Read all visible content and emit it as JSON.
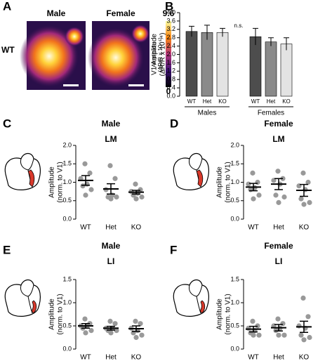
{
  "panel_a": {
    "panel": "A",
    "columns": [
      "Male",
      "Female"
    ],
    "row": "WT",
    "colorbar_max": "9.6",
    "colorbar_min": "0",
    "colorbar_label": [
      "Amplitude",
      "(ΔR/R x 10⁻⁴)"
    ]
  },
  "chart_data": [
    {
      "type": "bar",
      "panel": "B",
      "ylabel": [
        "V1 Amplitude",
        "(ΔR/R x 10⁻⁴)"
      ],
      "categories": [
        "WT",
        "Het",
        "KO",
        "WT",
        "Het",
        "KO"
      ],
      "groups": [
        "Males",
        "Females"
      ],
      "values": [
        3.1,
        3.05,
        3.05,
        2.85,
        2.6,
        2.5
      ],
      "errors": [
        0.25,
        0.35,
        0.2,
        0.4,
        0.2,
        0.3
      ],
      "colors": [
        "#4d4d4d",
        "#8a8a8a",
        "#e3e3e3",
        "#4d4d4d",
        "#8a8a8a",
        "#e3e3e3"
      ],
      "annotation": "n.s.",
      "ylim": [
        0,
        4
      ],
      "yticks": [
        {
          "value": 0,
          "label": "0.0"
        },
        0.4,
        0.8,
        1.2,
        1.6,
        {
          "value": 2,
          "label": "2.0"
        },
        2.4,
        2.8,
        3.2,
        3.6,
        {
          "value": 4,
          "label": "4.0"
        }
      ]
    },
    {
      "type": "dotplot",
      "panel": "C",
      "title": "Male",
      "subtitle": "LM",
      "ylabel": [
        "Amplitude",
        "(norm. to V1)"
      ],
      "categories": [
        "WT",
        "Het",
        "KO"
      ],
      "points": [
        [
          1.5,
          1.25,
          1.1,
          0.95,
          0.9,
          0.8,
          0.65
        ],
        [
          1.45,
          1.1,
          0.8,
          0.65,
          0.6,
          0.6,
          0.55
        ],
        [
          0.95,
          0.8,
          0.75,
          0.7,
          0.65,
          0.6,
          0.55
        ]
      ],
      "means": [
        1.05,
        0.82,
        0.73
      ],
      "errors": [
        0.13,
        0.14,
        0.05
      ],
      "point_color": "#999999",
      "mean_color": "#000000",
      "ylim": [
        0,
        2
      ],
      "yticks": [
        {
          "value": 0,
          "label": "0.0"
        },
        0.5,
        {
          "value": 1,
          "label": "1.0"
        },
        1.5,
        {
          "value": 2,
          "label": "2.0"
        }
      ]
    },
    {
      "type": "dotplot",
      "panel": "D",
      "title": "Female",
      "subtitle": "LM",
      "ylabel": [
        "Amplitude",
        "(norm. to V1)"
      ],
      "categories": [
        "WT",
        "Het",
        "KO"
      ],
      "points": [
        [
          1.25,
          1.0,
          0.95,
          0.85,
          0.8,
          0.65,
          0.55
        ],
        [
          1.3,
          1.1,
          1.05,
          0.95,
          0.65,
          0.6,
          0.45
        ],
        [
          1.25,
          1.0,
          0.9,
          0.8,
          0.55,
          0.45,
          0.4
        ]
      ],
      "means": [
        0.87,
        0.95,
        0.78
      ],
      "errors": [
        0.1,
        0.15,
        0.16
      ],
      "point_color": "#999999",
      "mean_color": "#000000",
      "ylim": [
        0,
        2
      ],
      "yticks": [
        {
          "value": 0,
          "label": "0.0"
        },
        0.5,
        {
          "value": 1,
          "label": "1.0"
        },
        1.5,
        {
          "value": 2,
          "label": "2.0"
        }
      ]
    },
    {
      "type": "dotplot",
      "panel": "E",
      "title": "Male",
      "subtitle": "LI",
      "ylabel": [
        "Amplitude",
        "(norm. to V1)"
      ],
      "categories": [
        "WT",
        "Het",
        "KO"
      ],
      "points": [
        [
          0.65,
          0.55,
          0.5,
          0.5,
          0.45,
          0.4,
          0.35
        ],
        [
          0.6,
          0.55,
          0.45,
          0.45,
          0.4,
          0.4,
          0.35
        ],
        [
          0.6,
          0.55,
          0.45,
          0.4,
          0.35,
          0.3,
          0.25
        ]
      ],
      "means": [
        0.5,
        0.45,
        0.44
      ],
      "errors": [
        0.05,
        0.04,
        0.06
      ],
      "point_color": "#999999",
      "mean_color": "#000000",
      "ylim": [
        0,
        1.5
      ],
      "yticks": [
        {
          "value": 0,
          "label": "0.0"
        },
        0.5,
        {
          "value": 1,
          "label": "1.0"
        },
        1.5
      ]
    },
    {
      "type": "dotplot",
      "panel": "F",
      "title": "Female",
      "subtitle": "LI",
      "ylabel": [
        "Amplitude",
        "(norm. to V1)"
      ],
      "categories": [
        "WT",
        "Het",
        "KO"
      ],
      "points": [
        [
          0.6,
          0.5,
          0.45,
          0.4,
          0.35,
          0.3,
          0.3
        ],
        [
          0.65,
          0.55,
          0.5,
          0.45,
          0.4,
          0.3,
          0.3
        ],
        [
          1.1,
          0.7,
          0.5,
          0.45,
          0.3,
          0.25,
          0.2
        ]
      ],
      "means": [
        0.43,
        0.46,
        0.48
      ],
      "errors": [
        0.06,
        0.07,
        0.12
      ],
      "point_color": "#999999",
      "mean_color": "#000000",
      "ylim": [
        0,
        1.5
      ],
      "yticks": [
        {
          "value": 0,
          "label": "0.0"
        },
        0.5,
        {
          "value": 1,
          "label": "1.0"
        },
        1.5
      ]
    }
  ]
}
